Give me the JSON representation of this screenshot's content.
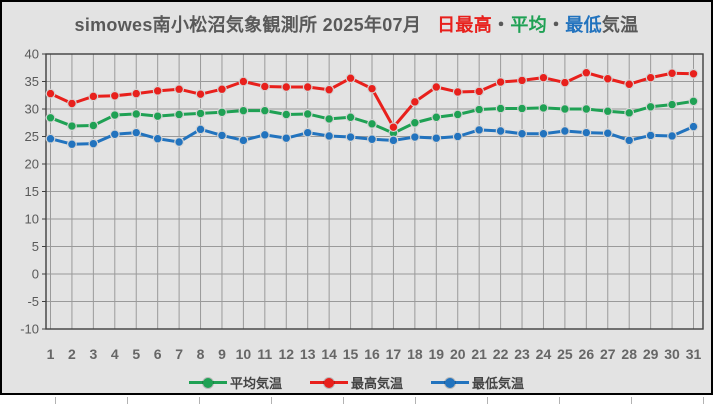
{
  "title": {
    "main": "simowes南小松沼気象観測所 2025年07月",
    "seg_high": "日最高",
    "sep1": "・",
    "seg_avg": "平均",
    "sep2": "・",
    "seg_low": "最低",
    "suffix": "気温"
  },
  "colors": {
    "max_red": "#e8201c",
    "avg_green": "#1fa154",
    "min_blue": "#2273be",
    "title_gray": "#595959",
    "gridline": "#9a9a9a",
    "plot_border": "#404040",
    "background": "#e3e3e3",
    "marker_ring": "#d4d4d4"
  },
  "chart_data": {
    "type": "line",
    "title": "simowes南小松沼気象観測所 2025年07月 日最高・平均・最低気温",
    "xlabel": "",
    "ylabel": "",
    "ylim": [
      -10,
      40
    ],
    "ytick_step": 5,
    "yticks": [
      40,
      35,
      30,
      25,
      20,
      15,
      10,
      5,
      0,
      -5,
      -10
    ],
    "grid": true,
    "legend_position": "bottom",
    "x": [
      1,
      2,
      3,
      4,
      5,
      6,
      7,
      8,
      9,
      10,
      11,
      12,
      13,
      14,
      15,
      16,
      17,
      18,
      19,
      20,
      21,
      22,
      23,
      24,
      25,
      26,
      27,
      28,
      29,
      30,
      31
    ],
    "series": [
      {
        "name": "平均気温",
        "color": "#1fa154",
        "values": [
          28.4,
          26.9,
          27.0,
          28.9,
          29.1,
          28.7,
          29.0,
          29.2,
          29.4,
          29.7,
          29.7,
          29.0,
          29.1,
          28.2,
          28.5,
          27.3,
          25.6,
          27.5,
          28.5,
          29.0,
          29.9,
          30.1,
          30.1,
          30.2,
          30.0,
          30.0,
          29.6,
          29.3,
          30.4,
          30.8,
          31.4
        ]
      },
      {
        "name": "最高気温",
        "color": "#e8201c",
        "values": [
          32.8,
          31.0,
          32.3,
          32.4,
          32.8,
          33.3,
          33.6,
          32.7,
          33.6,
          35.0,
          34.1,
          34.0,
          34.0,
          33.5,
          35.6,
          33.7,
          26.7,
          31.3,
          34.0,
          33.1,
          33.2,
          34.9,
          35.2,
          35.7,
          34.8,
          36.6,
          35.5,
          34.5,
          35.7,
          36.5,
          36.4
        ]
      },
      {
        "name": "最低気温",
        "color": "#2273be",
        "values": [
          24.6,
          23.6,
          23.7,
          25.4,
          25.7,
          24.6,
          24.0,
          26.3,
          25.2,
          24.3,
          25.3,
          24.7,
          25.7,
          25.1,
          24.9,
          24.5,
          24.3,
          24.9,
          24.7,
          25.0,
          26.2,
          26.0,
          25.5,
          25.5,
          26.0,
          25.7,
          25.6,
          24.3,
          25.2,
          25.1,
          26.8
        ]
      }
    ]
  },
  "legend": {
    "items": [
      "平均気温",
      "最高気温",
      "最低気温"
    ]
  }
}
